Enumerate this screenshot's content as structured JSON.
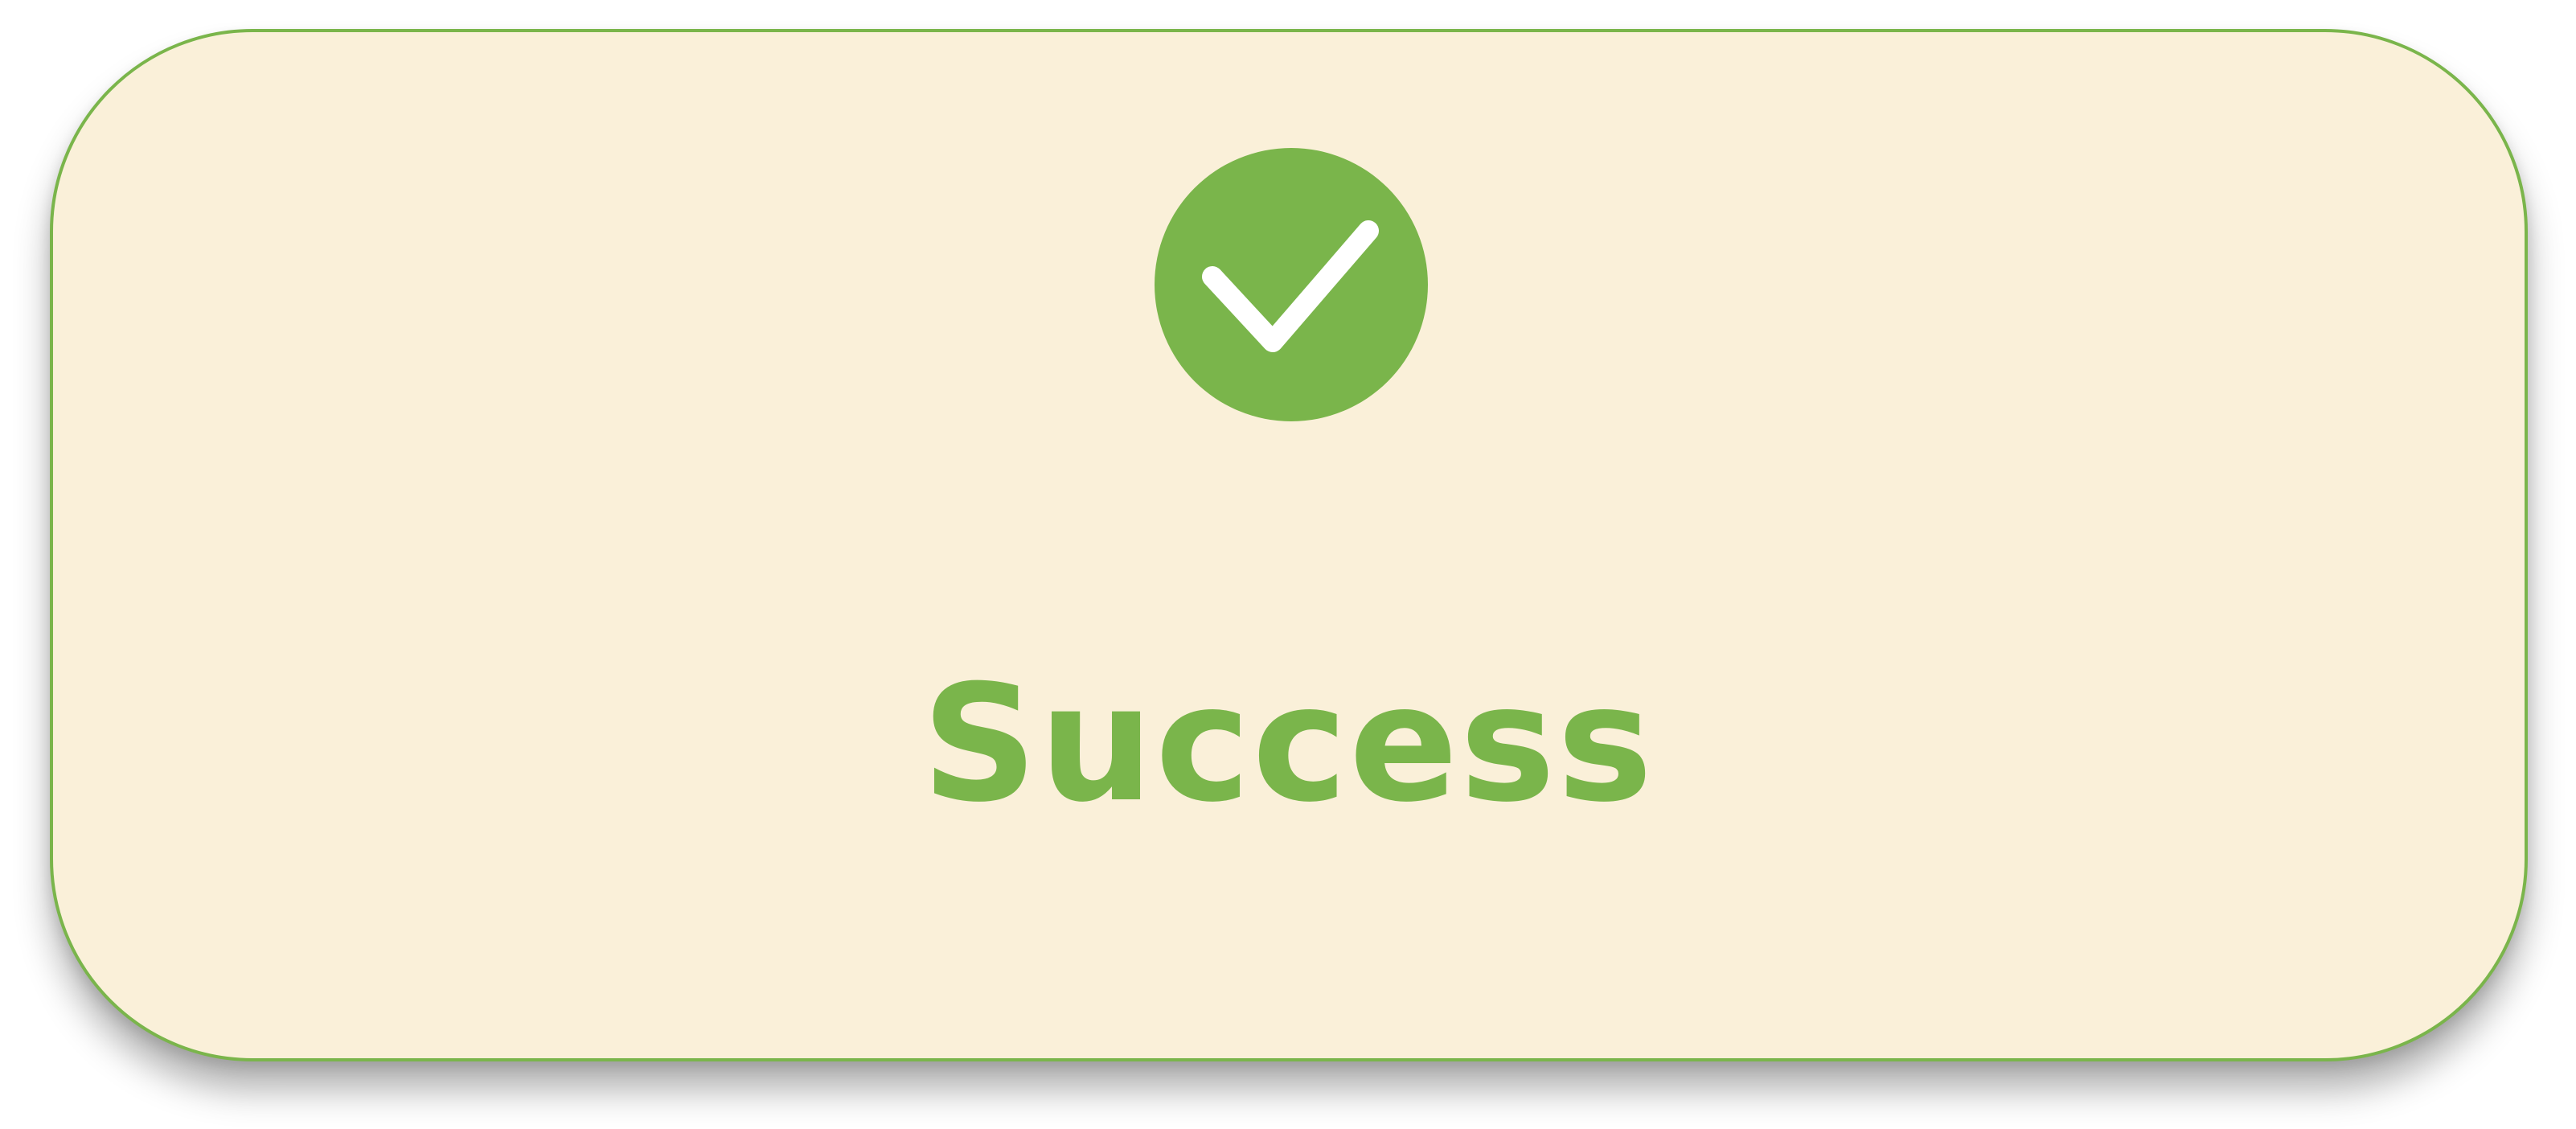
{
  "dialog": {
    "status_label": "Success",
    "icon": "check-circle-icon",
    "accent_color": "#7ab54b",
    "background_color": "#faf0d9",
    "icon_mark_color": "#ffffff"
  }
}
